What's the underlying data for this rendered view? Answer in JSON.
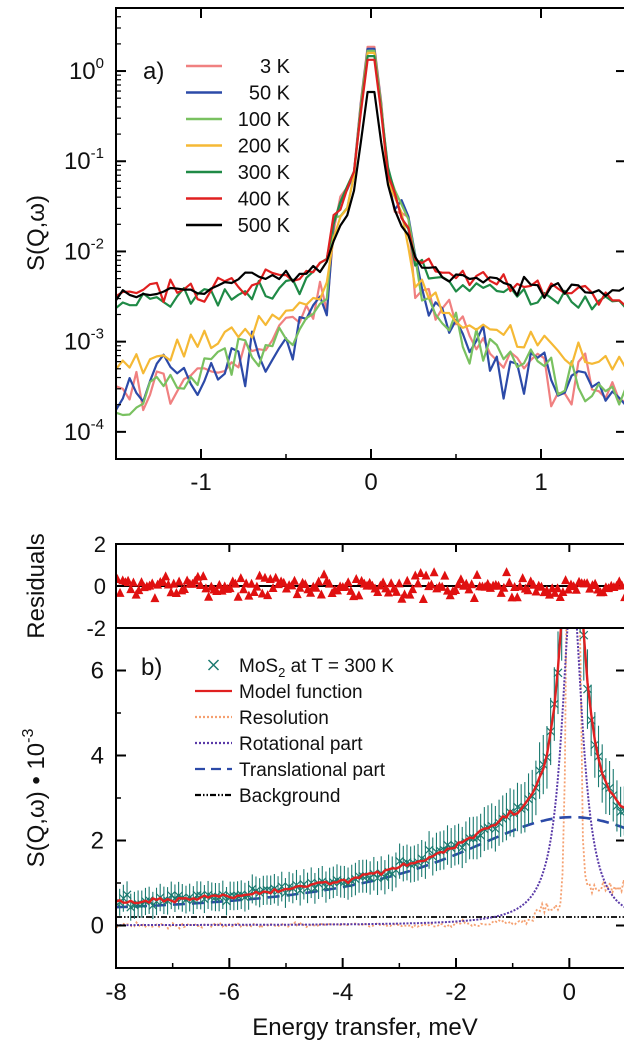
{
  "chart_data": [
    {
      "panel": "a)",
      "type": "line",
      "ylabel": "S(Q,ω)",
      "xlabel": "",
      "xlim": [
        -1.5,
        1.5
      ],
      "ylim": [
        5e-05,
        5
      ],
      "yscale": "log",
      "xticks": [
        -1,
        0,
        1
      ],
      "xticklabels": [
        "-1",
        "0",
        "1"
      ],
      "yticks": [
        0.0001,
        0.001,
        0.01,
        0.1,
        1
      ],
      "yticklabels": [
        {
          "base": "10",
          "exp": "-4"
        },
        {
          "base": "10",
          "exp": "-3"
        },
        {
          "base": "10",
          "exp": "-2"
        },
        {
          "base": "10",
          "exp": "-1"
        },
        {
          "base": "10",
          "exp": "0"
        }
      ],
      "legend_position": "upper-left",
      "series": [
        {
          "name": "3 K",
          "color": "#f08080",
          "peak": 2.05,
          "tail": 0.0003,
          "floor": 0.00012,
          "noise": 0.3,
          "seed": 3
        },
        {
          "name": "50 K",
          "color": "#2c4aa8",
          "peak": 1.95,
          "tail": 0.0002,
          "floor": 0.00014,
          "noise": 0.32,
          "seed": 50
        },
        {
          "name": "100 K",
          "color": "#79c160",
          "peak": 1.85,
          "tail": 0.00033,
          "floor": 0.00012,
          "noise": 0.3,
          "seed": 100
        },
        {
          "name": "200 K",
          "color": "#f5b935",
          "peak": 1.75,
          "tail": 0.0011,
          "floor": 0.0004,
          "noise": 0.15,
          "seed": 200
        },
        {
          "name": "300 K",
          "color": "#1f8a46",
          "peak": 1.6,
          "tail": 0.0035,
          "floor": 0.0014,
          "noise": 0.12,
          "seed": 300
        },
        {
          "name": "400 K",
          "color": "#e02020",
          "peak": 1.45,
          "tail": 0.0046,
          "floor": 0.0016,
          "noise": 0.12,
          "seed": 400
        },
        {
          "name": "500 K",
          "color": "#000000",
          "peak": 0.62,
          "tail": 0.0048,
          "floor": 0.0018,
          "noise": 0.1,
          "seed": 500
        }
      ]
    },
    {
      "panel": "residuals",
      "type": "scatter",
      "ylabel": "Residuals",
      "xlim": [
        -8,
        1
      ],
      "ylim": [
        -2,
        2
      ],
      "yticks": [
        -2,
        0,
        2
      ],
      "yticklabels": [
        "-2",
        "0",
        "2"
      ],
      "series": [
        {
          "name": "",
          "color": "#e01010",
          "n": 190,
          "spread": 0.55,
          "seed": 7
        }
      ]
    },
    {
      "panel": "b)",
      "type": "line",
      "ylabel": {
        "main": "S(Q,ω) • 10",
        "exp": "-3"
      },
      "xlabel": "Energy transfer, meV",
      "xlim": [
        -8,
        1
      ],
      "ylim": [
        -1,
        7
      ],
      "xticks": [
        -8,
        -6,
        -4,
        -2,
        0
      ],
      "xticklabels": [
        "-8",
        "-6",
        "-4",
        "-2",
        "0"
      ],
      "yticks": [
        0,
        2,
        4,
        6
      ],
      "yticklabels": [
        "0",
        "2",
        "4",
        "6"
      ],
      "legend_position": "upper-left",
      "legend": [
        {
          "label_main": "MoS",
          "label_sub": "2",
          "label_rest": " at T = 300 K",
          "style": "markers",
          "color": "#1a7a70"
        },
        {
          "label": "Model function",
          "style": "solid",
          "color": "#e02020"
        },
        {
          "label": "Resolution",
          "style": "dotted",
          "color": "#f5a070"
        },
        {
          "label": "Rotational part",
          "style": "dotted",
          "color": "#5a3aa8"
        },
        {
          "label": "Translational part",
          "style": "dashed",
          "color": "#2c4aa8"
        },
        {
          "label": "Background",
          "style": "dashdot",
          "color": "#000000"
        }
      ],
      "background_level": 0.2,
      "translational": {
        "amplitude": 2.35,
        "center": 0.05,
        "width": 2.65
      },
      "rotational": {
        "amplitude": 8.0,
        "center": 0.05,
        "width": 0.22
      },
      "resolution": {
        "amplitude": 30,
        "center": 0.07,
        "width": 0.1
      }
    }
  ]
}
